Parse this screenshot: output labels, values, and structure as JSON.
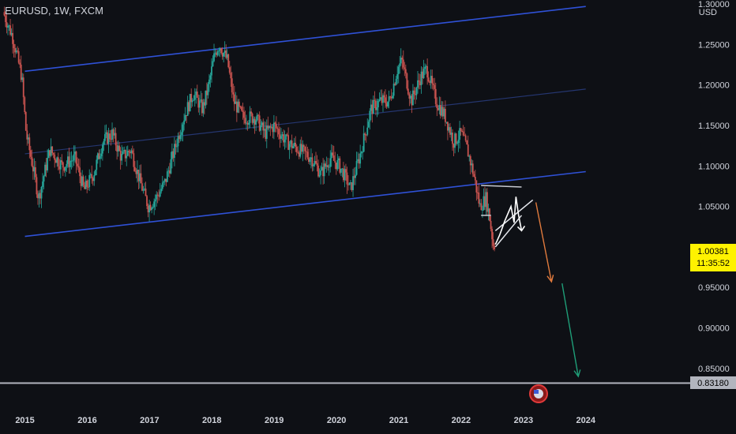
{
  "header": {
    "symbol": "EURUSD, 1W, FXCM",
    "currency": "USD"
  },
  "colors": {
    "background": "#0e1015",
    "channel": "#2f51d6",
    "channel_mid": "#253670",
    "candle_up": "#26a69a",
    "candle_down": "#c9534f",
    "price_badge": "#fff200",
    "target_line": "#b2b5be",
    "arrow_orange": "#e07a3d",
    "arrow_green": "#1f9e78",
    "event_icon": "#e03a3a"
  },
  "price_badge": {
    "price": "1.00381",
    "countdown": "11:35:52"
  },
  "target_badge": {
    "price": "0.83180"
  },
  "chart_data": {
    "type": "candlestick",
    "symbol": "EURUSD",
    "timeframe": "1W",
    "y_axis": {
      "ticks": [
        "1.30000",
        "1.25000",
        "1.20000",
        "1.15000",
        "1.10000",
        "1.05000",
        "1.00000",
        "0.95000",
        "0.90000",
        "0.85000"
      ],
      "range": [
        0.805,
        1.305
      ]
    },
    "x_axis": {
      "ticks": [
        "2015",
        "2016",
        "2017",
        "2018",
        "2019",
        "2020",
        "2021",
        "2022",
        "2023",
        "2024"
      ],
      "range": [
        2014.6,
        2025.6
      ]
    },
    "price_path": [
      [
        2014.65,
        1.29
      ],
      [
        2014.8,
        1.26
      ],
      [
        2014.95,
        1.21
      ],
      [
        2015.02,
        1.14
      ],
      [
        2015.15,
        1.09
      ],
      [
        2015.22,
        1.06
      ],
      [
        2015.4,
        1.12
      ],
      [
        2015.6,
        1.1
      ],
      [
        2015.8,
        1.11
      ],
      [
        2015.95,
        1.07
      ],
      [
        2016.1,
        1.09
      ],
      [
        2016.25,
        1.13
      ],
      [
        2016.4,
        1.14
      ],
      [
        2016.55,
        1.11
      ],
      [
        2016.7,
        1.12
      ],
      [
        2016.85,
        1.08
      ],
      [
        2016.98,
        1.05
      ],
      [
        2017.1,
        1.06
      ],
      [
        2017.25,
        1.08
      ],
      [
        2017.4,
        1.12
      ],
      [
        2017.55,
        1.16
      ],
      [
        2017.7,
        1.19
      ],
      [
        2017.85,
        1.17
      ],
      [
        2017.95,
        1.2
      ],
      [
        2018.05,
        1.24
      ],
      [
        2018.12,
        1.25
      ],
      [
        2018.25,
        1.23
      ],
      [
        2018.35,
        1.18
      ],
      [
        2018.5,
        1.16
      ],
      [
        2018.7,
        1.16
      ],
      [
        2018.85,
        1.14
      ],
      [
        2019.0,
        1.15
      ],
      [
        2019.2,
        1.13
      ],
      [
        2019.4,
        1.12
      ],
      [
        2019.6,
        1.11
      ],
      [
        2019.75,
        1.09
      ],
      [
        2019.9,
        1.11
      ],
      [
        2020.05,
        1.1
      ],
      [
        2020.18,
        1.08
      ],
      [
        2020.22,
        1.07
      ],
      [
        2020.4,
        1.12
      ],
      [
        2020.55,
        1.17
      ],
      [
        2020.7,
        1.18
      ],
      [
        2020.85,
        1.18
      ],
      [
        2020.98,
        1.22
      ],
      [
        2021.05,
        1.23
      ],
      [
        2021.2,
        1.18
      ],
      [
        2021.35,
        1.21
      ],
      [
        2021.45,
        1.22
      ],
      [
        2021.6,
        1.18
      ],
      [
        2021.75,
        1.16
      ],
      [
        2021.88,
        1.13
      ],
      [
        2022.0,
        1.14
      ],
      [
        2022.1,
        1.12
      ],
      [
        2022.2,
        1.09
      ],
      [
        2022.3,
        1.05
      ],
      [
        2022.4,
        1.06
      ],
      [
        2022.45,
        1.04
      ],
      [
        2022.52,
        1.0
      ],
      [
        2022.55,
        1.004
      ]
    ],
    "annotations": {
      "channel_upper": [
        [
          2015.0,
          1.217
        ],
        [
          2024.0,
          1.297
        ]
      ],
      "channel_middle": [
        [
          2015.0,
          1.115
        ],
        [
          2024.0,
          1.195
        ]
      ],
      "channel_lower": [
        [
          2015.0,
          1.013
        ],
        [
          2024.0,
          1.093
        ]
      ],
      "resistance_line": [
        [
          2022.32,
          1.076
        ],
        [
          2022.97,
          1.074
        ]
      ],
      "support_line": [
        [
          2022.32,
          1.039
        ],
        [
          2022.48,
          1.039
        ]
      ],
      "wedge_upper": [
        [
          2022.55,
          1.02
        ],
        [
          2023.15,
          1.058
        ]
      ],
      "wedge_lower": [
        [
          2022.55,
          1.0
        ],
        [
          2022.97,
          1.039
        ]
      ],
      "projected_path": [
        [
          2022.55,
          1.003
        ],
        [
          2022.62,
          1.015
        ],
        [
          2022.7,
          1.032
        ],
        [
          2022.8,
          1.05
        ],
        [
          2022.85,
          1.03
        ],
        [
          2022.88,
          1.062
        ],
        [
          2022.92,
          1.04
        ],
        [
          2022.97,
          1.02
        ]
      ],
      "arrow_down_1": [
        [
          2023.2,
          1.055
        ],
        [
          2023.45,
          0.957
        ]
      ],
      "arrow_down_2": [
        [
          2023.62,
          0.955
        ],
        [
          2023.88,
          0.84
        ]
      ],
      "target_level": 0.8318
    }
  }
}
